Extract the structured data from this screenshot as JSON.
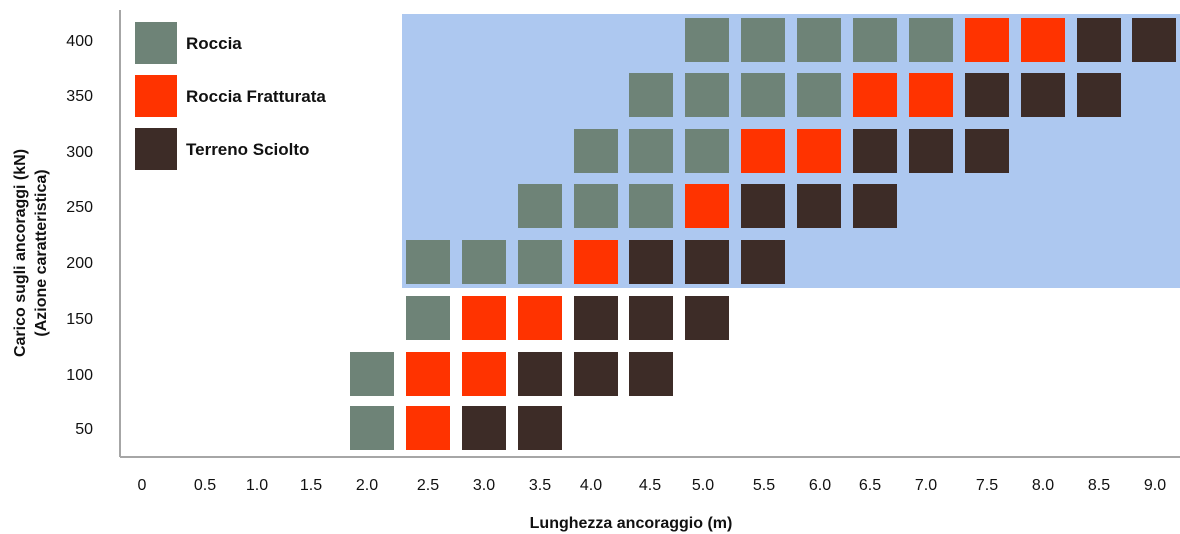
{
  "chart_data": {
    "type": "heatmap",
    "xlabel": "Lunghezza ancoraggio (m)",
    "ylabel_line1": "Carico sugli ancoraggi (kN)",
    "ylabel_line2": "(Azione caratteristica)",
    "x_ticks": [
      "0",
      "0.5",
      "1.0",
      "1.5",
      "2.0",
      "2.5",
      "3.0",
      "3.5",
      "4.0",
      "4.5",
      "5.0",
      "5.5",
      "6.0",
      "6.5",
      "7.0",
      "7.5",
      "8.0",
      "8.5",
      "9.0"
    ],
    "y_ticks": [
      "50",
      "100",
      "150",
      "200",
      "250",
      "300",
      "350",
      "400"
    ],
    "legend": [
      {
        "key": "R",
        "label": "Roccia",
        "color": "#6e8377"
      },
      {
        "key": "F",
        "label": "Roccia Fratturata",
        "color": "#ff3300"
      },
      {
        "key": "T",
        "label": "Terreno Sciolto",
        "color": "#3d2c27"
      }
    ],
    "highlight": {
      "color": "#adc8f0",
      "x_from": "2.0",
      "x_to": "9.0",
      "load_from": 200,
      "load_to": 400
    },
    "cells": [
      {
        "load": 50,
        "x": [
          "2.0",
          "2.5",
          "3.0",
          "3.5"
        ],
        "types": [
          "R",
          "F",
          "T",
          "T"
        ]
      },
      {
        "load": 100,
        "x": [
          "2.0",
          "2.5",
          "3.0",
          "3.5",
          "4.0",
          "4.5"
        ],
        "types": [
          "R",
          "F",
          "F",
          "T",
          "T",
          "T"
        ]
      },
      {
        "load": 150,
        "x": [
          "2.5",
          "3.0",
          "3.5",
          "4.0",
          "4.5",
          "5.0"
        ],
        "types": [
          "R",
          "F",
          "F",
          "T",
          "T",
          "T"
        ]
      },
      {
        "load": 200,
        "x": [
          "2.5",
          "3.0",
          "3.5",
          "4.0",
          "4.5",
          "5.0",
          "5.5"
        ],
        "types": [
          "R",
          "R",
          "R",
          "F",
          "T",
          "T",
          "T"
        ]
      },
      {
        "load": 250,
        "x": [
          "3.5",
          "4.0",
          "4.5",
          "5.0",
          "5.5",
          "6.0",
          "6.5"
        ],
        "types": [
          "R",
          "R",
          "R",
          "F",
          "T",
          "T",
          "T"
        ]
      },
      {
        "load": 300,
        "x": [
          "4.0",
          "4.5",
          "5.0",
          "5.5",
          "6.0",
          "6.5",
          "7.0",
          "7.5"
        ],
        "types": [
          "R",
          "R",
          "R",
          "F",
          "F",
          "T",
          "T",
          "T"
        ]
      },
      {
        "load": 350,
        "x": [
          "4.5",
          "5.0",
          "5.5",
          "6.0",
          "6.5",
          "7.0",
          "7.5",
          "8.0",
          "8.5"
        ],
        "types": [
          "R",
          "R",
          "R",
          "R",
          "F",
          "F",
          "T",
          "T",
          "T"
        ]
      },
      {
        "load": 400,
        "x": [
          "5.0",
          "5.5",
          "6.0",
          "6.5",
          "7.0",
          "7.5",
          "8.0",
          "8.5",
          "9.0"
        ],
        "types": [
          "R",
          "R",
          "R",
          "R",
          "R",
          "F",
          "F",
          "T",
          "T"
        ]
      }
    ]
  }
}
